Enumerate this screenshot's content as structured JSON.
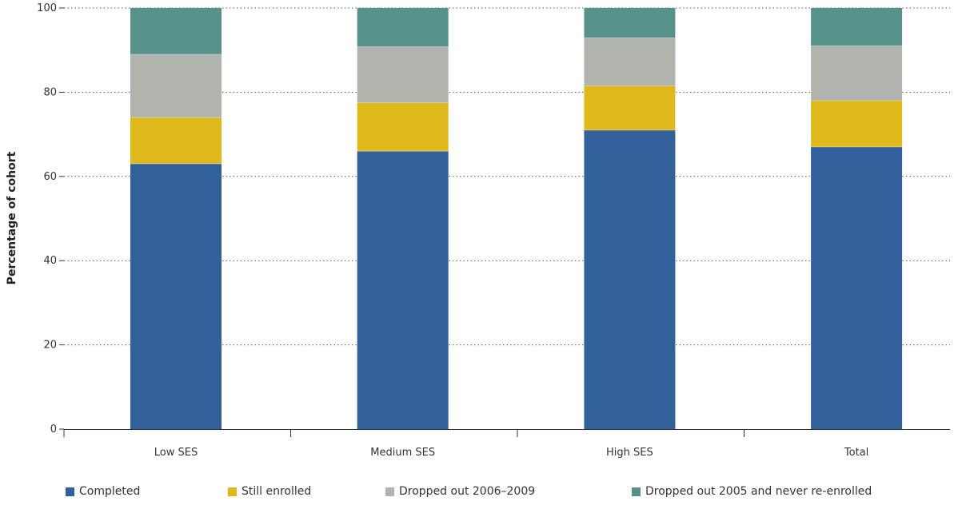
{
  "chart_data": {
    "type": "bar",
    "stacked": true,
    "categories": [
      "Low SES",
      "Medium SES",
      "High SES",
      "Total"
    ],
    "ylabel": "Percentage of cohort",
    "xlabel": "",
    "ylim": [
      0,
      100
    ],
    "yticks": [
      "0",
      "20",
      "40",
      "60",
      "80",
      "100"
    ],
    "grid": true,
    "legend_position": "bottom",
    "series": [
      {
        "name": "Completed",
        "values": [
          63,
          66,
          71,
          67
        ],
        "color": "#31609a"
      },
      {
        "name": "Still enrolled",
        "values": [
          11,
          11.5,
          10.5,
          11
        ],
        "color": "#dfb91c"
      },
      {
        "name": "Dropped out 2006–2009",
        "values": [
          15,
          13.3,
          11.4,
          13
        ],
        "color": "#b0b4ac"
      },
      {
        "name": "Dropped out 2005 and never re-enrolled",
        "values": [
          11,
          9.2,
          7.1,
          9
        ],
        "color": "#56918a"
      }
    ]
  }
}
